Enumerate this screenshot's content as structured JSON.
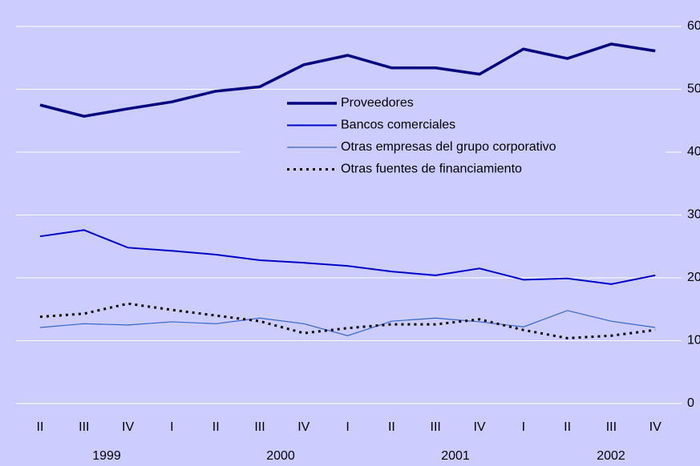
{
  "chart_data": {
    "type": "line",
    "categories": [
      "II",
      "III",
      "IV",
      "I",
      "II",
      "III",
      "IV",
      "I",
      "II",
      "III",
      "IV",
      "I",
      "II",
      "III",
      "IV"
    ],
    "years": [
      "1999",
      "2000",
      "2001",
      "2002"
    ],
    "series": [
      {
        "name": "Proveedores",
        "color": "#000080",
        "values": [
          47.5,
          45.7,
          46.9,
          48.0,
          49.7,
          50.4,
          53.9,
          55.4,
          53.4,
          53.4,
          52.4,
          56.4,
          54.9,
          57.2,
          56.1
        ]
      },
      {
        "name": "Bancos comerciales",
        "color": "#0000cc",
        "values": [
          26.6,
          27.6,
          24.8,
          24.3,
          23.7,
          22.8,
          22.4,
          21.9,
          21.0,
          20.4,
          21.5,
          19.7,
          19.9,
          19.0,
          20.4
        ]
      },
      {
        "name": "Otras empresas del grupo corporativo",
        "color": "#3366cc",
        "values": [
          12.1,
          12.7,
          12.5,
          13.0,
          12.7,
          13.6,
          12.7,
          10.8,
          13.1,
          13.6,
          13.0,
          12.2,
          14.8,
          13.1,
          12.1
        ]
      },
      {
        "name": "Otras fuentes de financiamiento",
        "color": "#000000",
        "values": [
          13.8,
          14.3,
          15.9,
          14.9,
          14.0,
          13.1,
          11.2,
          12.0,
          12.6,
          12.6,
          13.4,
          11.7,
          10.4,
          10.8,
          11.7
        ]
      }
    ],
    "ylim": [
      0,
      60
    ],
    "yticks": [
      0,
      10,
      20,
      30,
      40,
      50,
      60
    ],
    "grid": true
  }
}
